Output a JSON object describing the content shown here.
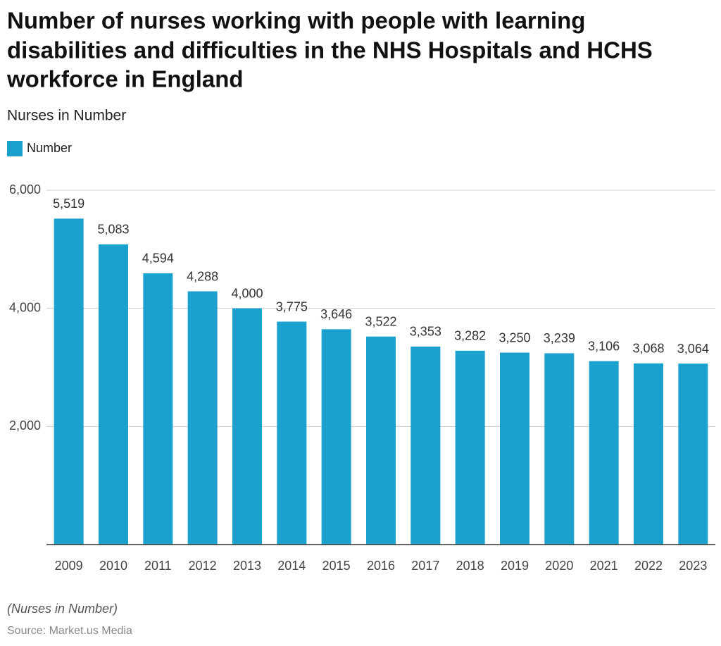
{
  "chart_data": {
    "type": "bar",
    "title": [
      "Number of nurses working with people with learning",
      "disabilities and difficulties in the NHS Hospitals and HCHS",
      "workforce in England"
    ],
    "subtitle": "Nurses in Number",
    "categories": [
      "2009",
      "2010",
      "2011",
      "2012",
      "2013",
      "2014",
      "2015",
      "2016",
      "2017",
      "2018",
      "2019",
      "2020",
      "2021",
      "2022",
      "2023"
    ],
    "series": [
      {
        "name": "Number",
        "color": "#1ba1cd",
        "values": [
          5519,
          5083,
          4594,
          4288,
          4000,
          3775,
          3646,
          3522,
          3353,
          3282,
          3250,
          3239,
          3106,
          3068,
          3064
        ],
        "value_labels": [
          "5,519",
          "5,083",
          "4,594",
          "4,288",
          "4,000",
          "3,775",
          "3,646",
          "3,522",
          "3,353",
          "3,282",
          "3,250",
          "3,239",
          "3,106",
          "3,068",
          "3,064"
        ]
      }
    ],
    "ylim": [
      0,
      6000
    ],
    "yticks": [
      {
        "value": 2000,
        "label": "2,000"
      },
      {
        "value": 4000,
        "label": "4,000"
      },
      {
        "value": 6000,
        "label": "6,000"
      }
    ],
    "grid": true,
    "note": "(Nurses in Number)",
    "source": "Source: Market.us Media"
  }
}
